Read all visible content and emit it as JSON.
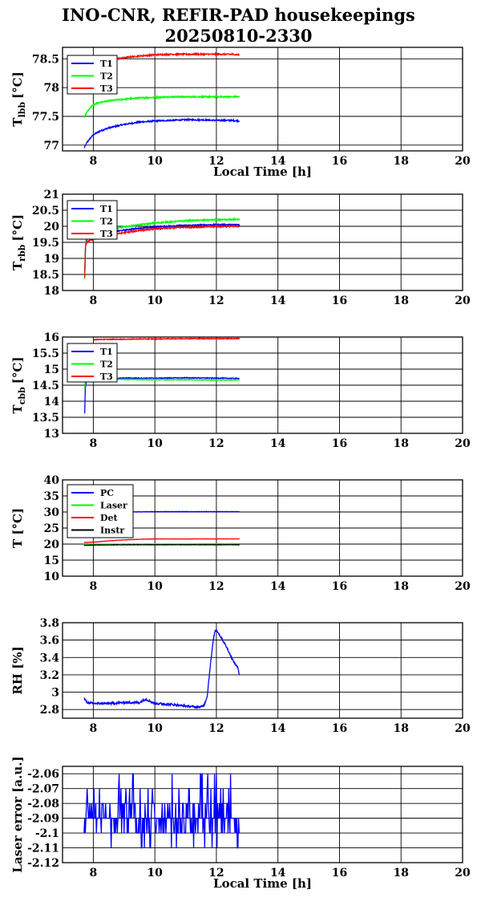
{
  "title": {
    "line1": "INO-CNR, REFIR-PAD housekeepings",
    "line2": "20250810-2330"
  },
  "colors": {
    "blue": "#0000ff",
    "green": "#00ff00",
    "red": "#ff0000",
    "black": "#000000"
  },
  "chart_data": [
    {
      "type": "line",
      "id": "lbb",
      "ylabel_main": "T",
      "ylabel_sub": "lbb",
      "ylabel_unit": "[°C]",
      "xlabel": "Local Time [h]",
      "xlim": [
        7,
        20
      ],
      "ylim": [
        76.9,
        78.7
      ],
      "yticks": [
        77,
        77.5,
        78,
        78.5
      ],
      "ytick_labels": [
        "77",
        "77.5",
        "78",
        "78.5"
      ],
      "xticks": [
        8,
        10,
        12,
        14,
        16,
        18,
        20
      ],
      "xtick_labels": [
        "8",
        "10",
        "12",
        "14",
        "16",
        "18",
        "20"
      ],
      "grid": true,
      "legend": "top-left",
      "series": [
        {
          "name": "T1",
          "color": "#0000ff",
          "noise": 0.012,
          "x": [
            7.7,
            7.8,
            7.9,
            8.0,
            8.2,
            8.5,
            9.0,
            9.5,
            10.0,
            10.5,
            11.0,
            11.5,
            12.0,
            12.5,
            12.75
          ],
          "y": [
            76.95,
            77.05,
            77.12,
            77.18,
            77.24,
            77.3,
            77.36,
            77.4,
            77.42,
            77.43,
            77.44,
            77.44,
            77.43,
            77.43,
            77.42
          ]
        },
        {
          "name": "T2",
          "color": "#00ff00",
          "noise": 0.012,
          "x": [
            7.7,
            7.8,
            7.9,
            8.0,
            8.2,
            8.5,
            9.0,
            9.5,
            10.0,
            10.5,
            11.0,
            11.5,
            12.0,
            12.5,
            12.75
          ],
          "y": [
            77.48,
            77.58,
            77.65,
            77.7,
            77.74,
            77.77,
            77.8,
            77.82,
            77.83,
            77.84,
            77.84,
            77.84,
            77.84,
            77.84,
            77.84
          ]
        },
        {
          "name": "T3",
          "color": "#ff0000",
          "noise": 0.012,
          "x": [
            8.0,
            8.3,
            8.6,
            9.0,
            9.5,
            10.0,
            10.5,
            11.0,
            11.5,
            12.0,
            12.5,
            12.75
          ],
          "y": [
            78.47,
            78.48,
            78.49,
            78.52,
            78.55,
            78.57,
            78.58,
            78.58,
            78.58,
            78.58,
            78.58,
            78.57
          ]
        }
      ]
    },
    {
      "type": "line",
      "id": "rbb",
      "ylabel_main": "T",
      "ylabel_sub": "rbb",
      "ylabel_unit": "[°C]",
      "xlabel": "",
      "xlim": [
        7,
        20
      ],
      "ylim": [
        18,
        21
      ],
      "yticks": [
        18,
        18.5,
        19,
        19.5,
        20,
        20.5,
        21
      ],
      "ytick_labels": [
        "18",
        "18.5",
        "19",
        "19.5",
        "20",
        "20.5",
        "21"
      ],
      "xticks": [
        8,
        10,
        12,
        14,
        16,
        18,
        20
      ],
      "xtick_labels": [
        "8",
        "10",
        "12",
        "14",
        "16",
        "18",
        "20"
      ],
      "grid": true,
      "legend": "top-left",
      "series": [
        {
          "name": "T1",
          "color": "#0000ff",
          "noise": 0.02,
          "x": [
            7.72,
            7.75,
            7.8,
            8.0,
            8.5,
            9.0,
            9.5,
            10.0,
            10.5,
            11.0,
            11.5,
            12.0,
            12.5,
            12.75
          ],
          "y": [
            18.6,
            19.5,
            19.62,
            19.7,
            19.8,
            19.88,
            19.94,
            19.98,
            20.01,
            20.03,
            20.04,
            20.05,
            20.05,
            20.05
          ]
        },
        {
          "name": "T2",
          "color": "#00ff00",
          "noise": 0.02,
          "x": [
            7.72,
            7.75,
            7.8,
            8.0,
            8.5,
            9.0,
            9.5,
            10.0,
            10.5,
            11.0,
            11.5,
            12.0,
            12.5,
            12.75
          ],
          "y": [
            18.35,
            19.55,
            19.68,
            19.78,
            19.9,
            19.98,
            20.05,
            20.1,
            20.14,
            20.17,
            20.19,
            20.2,
            20.21,
            20.22
          ]
        },
        {
          "name": "T3",
          "color": "#ff0000",
          "noise": 0.02,
          "x": [
            7.72,
            7.75,
            7.8,
            8.0,
            8.5,
            9.0,
            9.5,
            10.0,
            10.5,
            11.0,
            11.5,
            12.0,
            12.5,
            12.75
          ],
          "y": [
            18.4,
            19.4,
            19.52,
            19.6,
            19.72,
            19.8,
            19.87,
            19.92,
            19.95,
            19.97,
            19.98,
            19.99,
            20.0,
            20.0
          ]
        }
      ]
    },
    {
      "type": "line",
      "id": "cbb",
      "ylabel_main": "T",
      "ylabel_sub": "cbb",
      "ylabel_unit": "[°C]",
      "xlabel": "",
      "xlim": [
        7,
        20
      ],
      "ylim": [
        13,
        16
      ],
      "yticks": [
        13,
        13.5,
        14,
        14.5,
        15,
        15.5,
        16
      ],
      "ytick_labels": [
        "13",
        "13.5",
        "14",
        "14.5",
        "15",
        "15.5",
        "16"
      ],
      "xticks": [
        8,
        10,
        12,
        14,
        16,
        18,
        20
      ],
      "xtick_labels": [
        "8",
        "10",
        "12",
        "14",
        "16",
        "18",
        "20"
      ],
      "grid": true,
      "legend": "top-left",
      "series": [
        {
          "name": "T1",
          "color": "#0000ff",
          "noise": 0.012,
          "x": [
            7.72,
            7.74,
            7.78,
            8.0,
            9.0,
            10.0,
            11.0,
            12.0,
            12.75
          ],
          "y": [
            13.62,
            14.4,
            14.68,
            14.7,
            14.72,
            14.72,
            14.73,
            14.72,
            14.71
          ]
        },
        {
          "name": "T2",
          "color": "#00ff00",
          "noise": 0.012,
          "x": [
            7.72,
            7.74,
            7.78,
            8.0,
            9.0,
            10.0,
            11.0,
            12.0,
            12.75
          ],
          "y": [
            14.4,
            14.6,
            14.66,
            14.68,
            14.68,
            14.67,
            14.67,
            14.66,
            14.66
          ]
        },
        {
          "name": "T3",
          "color": "#ff0000",
          "noise": 0.012,
          "x": [
            8.0,
            8.5,
            9.0,
            9.5,
            10.0,
            11.0,
            12.0,
            12.75
          ],
          "y": [
            15.92,
            15.93,
            15.93,
            15.94,
            15.94,
            15.95,
            15.95,
            15.95
          ]
        }
      ]
    },
    {
      "type": "line",
      "id": "temps",
      "ylabel_main": "T [°C]",
      "ylabel_sub": "",
      "ylabel_unit": "",
      "xlabel": "",
      "xlim": [
        7,
        20
      ],
      "ylim": [
        10,
        40
      ],
      "yticks": [
        10,
        15,
        20,
        25,
        30,
        35,
        40
      ],
      "ytick_labels": [
        "10",
        "15",
        "20",
        "25",
        "30",
        "35",
        "40"
      ],
      "xticks": [
        8,
        10,
        12,
        14,
        16,
        18,
        20
      ],
      "xtick_labels": [
        "8",
        "10",
        "12",
        "14",
        "16",
        "18",
        "20"
      ],
      "grid": true,
      "legend": "top-left",
      "series": [
        {
          "name": "PC",
          "color": "#0000ff",
          "noise": 0.06,
          "x": [
            9.2,
            10.0,
            11.0,
            12.0,
            12.75
          ],
          "y": [
            30.0,
            30.1,
            30.1,
            30.1,
            30.1
          ]
        },
        {
          "name": "Laser",
          "color": "#00ff00",
          "noise": 0.06,
          "x": [
            7.7,
            8.0,
            9.0,
            10.0,
            11.0,
            12.0,
            12.75
          ],
          "y": [
            19.8,
            19.9,
            20.0,
            20.0,
            20.0,
            20.1,
            20.1
          ]
        },
        {
          "name": "Det",
          "color": "#ff0000",
          "noise": 0.04,
          "x": [
            7.7,
            8.0,
            8.5,
            9.0,
            9.5,
            10.0,
            11.0,
            12.0,
            12.75
          ],
          "y": [
            20.5,
            20.6,
            21.0,
            21.3,
            21.5,
            21.6,
            21.6,
            21.6,
            21.6
          ]
        },
        {
          "name": "Instr",
          "color": "#000000",
          "noise": 0.06,
          "x": [
            7.7,
            8.0,
            9.0,
            10.0,
            11.0,
            12.0,
            12.75
          ],
          "y": [
            19.6,
            19.7,
            19.8,
            19.8,
            19.8,
            19.8,
            19.8
          ]
        }
      ]
    },
    {
      "type": "line",
      "id": "rh",
      "ylabel_main": "RH [%]",
      "ylabel_sub": "",
      "ylabel_unit": "",
      "xlabel": "",
      "xlim": [
        7,
        20
      ],
      "ylim": [
        2.7,
        3.8
      ],
      "yticks": [
        2.8,
        3.0,
        3.2,
        3.4,
        3.6,
        3.8
      ],
      "ytick_labels": [
        "2.8",
        "3",
        "3.2",
        "3.4",
        "3.6",
        "3.8"
      ],
      "xticks": [
        8,
        10,
        12,
        14,
        16,
        18,
        20
      ],
      "xtick_labels": [
        "8",
        "10",
        "12",
        "14",
        "16",
        "18",
        "20"
      ],
      "grid": true,
      "legend": "",
      "series": [
        {
          "name": "",
          "color": "#0000ff",
          "noise": 0.012,
          "x": [
            7.7,
            7.8,
            8.0,
            8.5,
            9.0,
            9.5,
            9.7,
            10.0,
            10.5,
            11.0,
            11.3,
            11.5,
            11.6,
            11.7,
            11.8,
            11.9,
            11.95,
            12.0,
            12.1,
            12.2,
            12.3,
            12.4,
            12.5,
            12.6,
            12.7,
            12.75
          ],
          "y": [
            2.93,
            2.88,
            2.87,
            2.87,
            2.88,
            2.88,
            2.92,
            2.87,
            2.86,
            2.84,
            2.83,
            2.83,
            2.85,
            2.95,
            3.3,
            3.6,
            3.7,
            3.72,
            3.66,
            3.6,
            3.54,
            3.47,
            3.39,
            3.33,
            3.28,
            3.2
          ]
        }
      ]
    },
    {
      "type": "line",
      "id": "laser",
      "ylabel_main": "Laser error [a.u.]",
      "ylabel_sub": "",
      "ylabel_unit": "",
      "xlabel": "Local Time [h]",
      "xlim": [
        7,
        20
      ],
      "ylim": [
        -2.12,
        -2.055
      ],
      "yticks": [
        -2.12,
        -2.11,
        -2.1,
        -2.09,
        -2.08,
        -2.07,
        -2.06
      ],
      "ytick_labels": [
        "-2.12",
        "-2.11",
        "-2.1",
        "-2.09",
        "-2.08",
        "-2.07",
        "-2.06"
      ],
      "xticks": [
        8,
        10,
        12,
        14,
        16,
        18,
        20
      ],
      "xtick_labels": [
        "8",
        "10",
        "12",
        "14",
        "16",
        "18",
        "20"
      ],
      "grid": true,
      "legend": "",
      "series": [
        {
          "name": "",
          "color": "#0000ff",
          "x": [
            7.7,
            12.75
          ],
          "levels": [
            -2.06,
            -2.07,
            -2.08,
            -2.09,
            -2.1,
            -2.11
          ]
        }
      ]
    }
  ]
}
